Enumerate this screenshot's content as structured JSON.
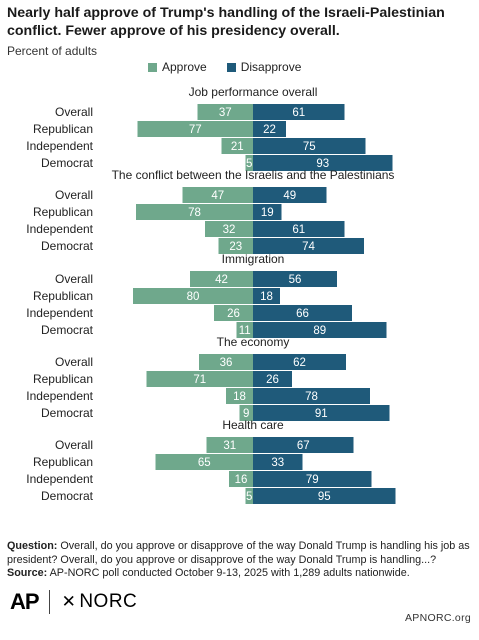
{
  "title": "Nearly half approve of Trump's handling of the Israeli-Palestinian conflict. Fewer approve of his presidency overall.",
  "subtitle": "Percent of adults",
  "colors": {
    "approve": "#6fa88c",
    "disapprove": "#1f5a7a",
    "label_text_on_approve": "#ffffff"
  },
  "legend": {
    "approve": "Approve",
    "disapprove": "Disapprove"
  },
  "chart_data": {
    "type": "bar",
    "orientation": "horizontal-diverging",
    "series_names": [
      "Approve",
      "Disapprove"
    ],
    "groups": [
      {
        "title": "Job performance overall",
        "rows": [
          {
            "label": "Overall",
            "approve": 37,
            "disapprove": 61
          },
          {
            "label": "Republican",
            "approve": 77,
            "disapprove": 22
          },
          {
            "label": "Independent",
            "approve": 21,
            "disapprove": 75
          },
          {
            "label": "Democrat",
            "approve": 5,
            "disapprove": 93
          }
        ]
      },
      {
        "title": "The conflict between the Israelis and the Palestinians",
        "rows": [
          {
            "label": "Overall",
            "approve": 47,
            "disapprove": 49
          },
          {
            "label": "Republican",
            "approve": 78,
            "disapprove": 19
          },
          {
            "label": "Independent",
            "approve": 32,
            "disapprove": 61
          },
          {
            "label": "Democrat",
            "approve": 23,
            "disapprove": 74
          }
        ]
      },
      {
        "title": "Immigration",
        "rows": [
          {
            "label": "Overall",
            "approve": 42,
            "disapprove": 56
          },
          {
            "label": "Republican",
            "approve": 80,
            "disapprove": 18
          },
          {
            "label": "Independent",
            "approve": 26,
            "disapprove": 66
          },
          {
            "label": "Democrat",
            "approve": 11,
            "disapprove": 89
          }
        ]
      },
      {
        "title": "The economy",
        "rows": [
          {
            "label": "Overall",
            "approve": 36,
            "disapprove": 62
          },
          {
            "label": "Republican",
            "approve": 71,
            "disapprove": 26
          },
          {
            "label": "Independent",
            "approve": 18,
            "disapprove": 78
          },
          {
            "label": "Democrat",
            "approve": 9,
            "disapprove": 91
          }
        ]
      },
      {
        "title": "Health care",
        "rows": [
          {
            "label": "Overall",
            "approve": 31,
            "disapprove": 67
          },
          {
            "label": "Republican",
            "approve": 65,
            "disapprove": 33
          },
          {
            "label": "Independent",
            "approve": 16,
            "disapprove": 79
          },
          {
            "label": "Democrat",
            "approve": 5,
            "disapprove": 95
          }
        ]
      }
    ]
  },
  "footer": {
    "question_label": "Question:",
    "question_text": " Overall, do you approve or disapprove of the way Donald Trump is handling his job as president? Overall, do you approve or disapprove of the way Donald Trump is handling...?",
    "source_label": "Source:",
    "source_text": " AP-NORC poll conducted October 9-13, 2025 with 1,289 adults nationwide."
  },
  "logos": {
    "ap": "AP",
    "norc": "NORC"
  },
  "site": "APNORC.org"
}
